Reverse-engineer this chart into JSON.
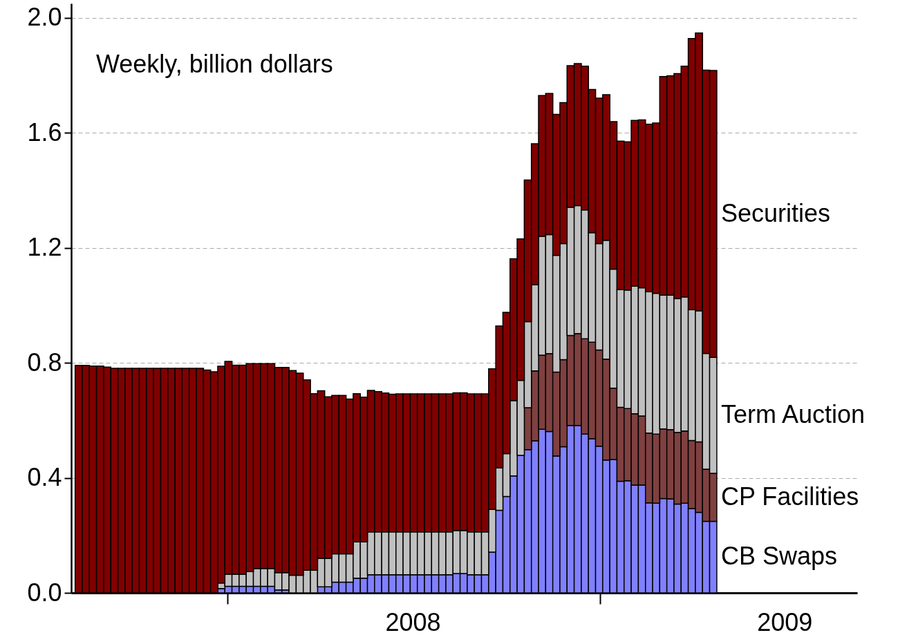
{
  "chart_data": {
    "type": "bar",
    "stacked": true,
    "annotations": [
      "Weekly, billion dollars"
    ],
    "x": [
      "2007-08-08",
      "2007-08-15",
      "2007-08-22",
      "2007-08-29",
      "2007-09-05",
      "2007-09-12",
      "2007-09-19",
      "2007-09-26",
      "2007-10-03",
      "2007-10-10",
      "2007-10-17",
      "2007-10-24",
      "2007-10-31",
      "2007-11-07",
      "2007-11-14",
      "2007-11-21",
      "2007-11-28",
      "2007-12-05",
      "2007-12-12",
      "2007-12-19",
      "2007-12-26",
      "2008-01-02",
      "2008-01-09",
      "2008-01-16",
      "2008-01-23",
      "2008-01-30",
      "2008-02-06",
      "2008-02-13",
      "2008-02-20",
      "2008-02-27",
      "2008-03-05",
      "2008-03-12",
      "2008-03-19",
      "2008-03-26",
      "2008-04-02",
      "2008-04-09",
      "2008-04-16",
      "2008-04-23",
      "2008-04-30",
      "2008-05-07",
      "2008-05-14",
      "2008-05-21",
      "2008-05-28",
      "2008-06-04",
      "2008-06-11",
      "2008-06-18",
      "2008-06-25",
      "2008-07-02",
      "2008-07-09",
      "2008-07-16",
      "2008-07-23",
      "2008-07-30",
      "2008-08-06",
      "2008-08-13",
      "2008-08-20",
      "2008-08-27",
      "2008-09-03",
      "2008-09-10",
      "2008-09-17",
      "2008-09-24",
      "2008-10-01",
      "2008-10-08",
      "2008-10-15",
      "2008-10-22",
      "2008-10-29",
      "2008-11-05",
      "2008-11-12",
      "2008-11-19",
      "2008-11-26",
      "2008-12-03",
      "2008-12-10",
      "2008-12-17",
      "2008-12-24",
      "2008-12-31",
      "2009-01-07",
      "2009-01-14",
      "2009-01-21",
      "2009-01-28",
      "2009-02-04",
      "2009-02-11",
      "2009-02-18",
      "2009-02-25",
      "2009-03-04",
      "2009-03-11",
      "2009-03-18",
      "2009-03-25",
      "2009-04-01",
      "2009-04-08",
      "2009-04-15",
      "2009-04-22"
    ],
    "series": [
      {
        "name": "CB Swaps",
        "color": "#8080ff",
        "values": [
          null,
          null,
          null,
          null,
          null,
          null,
          null,
          null,
          null,
          null,
          null,
          null,
          null,
          null,
          null,
          null,
          null,
          null,
          null,
          null,
          0.015,
          0.023,
          0.023,
          0.023,
          0.023,
          0.023,
          0.023,
          0.023,
          0.01,
          0.01,
          null,
          null,
          null,
          null,
          0.021,
          0.021,
          0.037,
          0.037,
          0.037,
          0.051,
          0.051,
          0.063,
          0.063,
          0.063,
          0.063,
          0.063,
          0.063,
          0.063,
          0.063,
          0.063,
          0.063,
          0.063,
          0.063,
          0.067,
          0.067,
          0.063,
          0.063,
          0.063,
          0.142,
          0.287,
          0.335,
          0.407,
          0.478,
          0.498,
          0.529,
          0.569,
          0.561,
          0.476,
          0.508,
          0.582,
          0.582,
          0.552,
          0.536,
          0.51,
          0.462,
          0.464,
          0.388,
          0.39,
          0.375,
          0.375,
          0.313,
          0.312,
          0.328,
          0.327,
          0.309,
          0.312,
          0.293,
          0.28,
          0.249,
          0.249
        ]
      },
      {
        "name": "CP Facilities",
        "color": "#804040",
        "values": [
          null,
          null,
          null,
          null,
          null,
          null,
          null,
          null,
          null,
          null,
          null,
          null,
          null,
          null,
          null,
          null,
          null,
          null,
          null,
          null,
          null,
          null,
          null,
          null,
          null,
          null,
          null,
          null,
          null,
          null,
          null,
          null,
          null,
          null,
          null,
          null,
          null,
          null,
          null,
          null,
          null,
          null,
          null,
          null,
          null,
          null,
          null,
          null,
          null,
          null,
          null,
          null,
          null,
          null,
          null,
          null,
          null,
          null,
          null,
          null,
          null,
          null,
          null,
          0.146,
          0.243,
          0.258,
          0.271,
          0.292,
          0.303,
          0.313,
          0.32,
          0.332,
          0.336,
          0.335,
          0.351,
          0.248,
          0.257,
          0.251,
          0.248,
          0.24,
          0.243,
          0.24,
          0.242,
          0.241,
          0.249,
          0.251,
          0.237,
          0.245,
          0.181,
          0.167
        ]
      },
      {
        "name": "Term Auction",
        "color": "#c0c0c0",
        "values": [
          null,
          null,
          null,
          null,
          null,
          null,
          null,
          null,
          null,
          null,
          null,
          null,
          null,
          null,
          null,
          null,
          null,
          null,
          null,
          null,
          0.019,
          0.042,
          0.042,
          0.042,
          0.051,
          0.062,
          0.062,
          0.062,
          0.06,
          0.06,
          0.061,
          0.061,
          0.079,
          0.079,
          0.099,
          0.099,
          0.099,
          0.099,
          0.099,
          0.126,
          0.126,
          0.149,
          0.149,
          0.149,
          0.149,
          0.149,
          0.149,
          0.149,
          0.149,
          0.149,
          0.149,
          0.149,
          0.149,
          0.15,
          0.15,
          0.149,
          0.149,
          0.149,
          0.148,
          0.148,
          0.149,
          0.262,
          0.261,
          0.299,
          0.3,
          0.413,
          0.414,
          0.406,
          0.404,
          0.446,
          0.445,
          0.448,
          0.381,
          0.37,
          0.413,
          0.414,
          0.41,
          0.412,
          0.444,
          0.446,
          0.491,
          0.49,
          0.466,
          0.468,
          0.465,
          0.466,
          0.455,
          0.456,
          0.403,
          0.403
        ]
      },
      {
        "name": "Securities",
        "color": "#800000",
        "values": [
          0.791,
          0.791,
          0.789,
          0.789,
          0.785,
          0.781,
          0.781,
          0.781,
          0.781,
          0.781,
          0.781,
          0.781,
          0.781,
          0.781,
          0.781,
          0.781,
          0.781,
          0.781,
          0.775,
          0.769,
          0.754,
          0.74,
          0.727,
          0.727,
          0.723,
          0.712,
          0.712,
          0.712,
          0.714,
          0.714,
          0.712,
          0.703,
          0.662,
          0.614,
          0.583,
          0.562,
          0.551,
          0.551,
          0.538,
          0.516,
          0.504,
          0.492,
          0.488,
          0.483,
          0.479,
          0.48,
          0.48,
          0.48,
          0.48,
          0.48,
          0.48,
          0.48,
          0.48,
          0.479,
          0.479,
          0.48,
          0.48,
          0.48,
          0.489,
          0.493,
          0.492,
          0.493,
          0.492,
          0.493,
          0.49,
          0.49,
          0.491,
          0.49,
          0.49,
          0.493,
          0.494,
          0.5,
          0.498,
          0.506,
          0.507,
          0.513,
          0.516,
          0.516,
          0.576,
          0.584,
          0.583,
          0.592,
          0.76,
          0.762,
          0.783,
          0.803,
          0.943,
          0.966,
          0.985,
          0.998
        ]
      }
    ],
    "xlim": [
      "2007-08-04",
      "2009-09-07"
    ],
    "xticks": [
      {
        "value": "2008-01-01",
        "label": null
      },
      {
        "value": "2009-01-01",
        "label": null
      },
      {
        "value": "2008-07-01",
        "label": "2008"
      },
      {
        "value": "2009-07-01",
        "label": "2009"
      }
    ],
    "ylim": [
      0,
      2.05
    ],
    "yticks": [
      {
        "value": 0,
        "label": "0.0"
      },
      {
        "value": 0.4,
        "label": "0.4"
      },
      {
        "value": 0.8,
        "label": "0.8"
      },
      {
        "value": 1.2,
        "label": "1.2"
      },
      {
        "value": 1.6,
        "label": "1.6"
      },
      {
        "value": 2.0,
        "label": "2.0"
      }
    ],
    "grid": "y"
  }
}
